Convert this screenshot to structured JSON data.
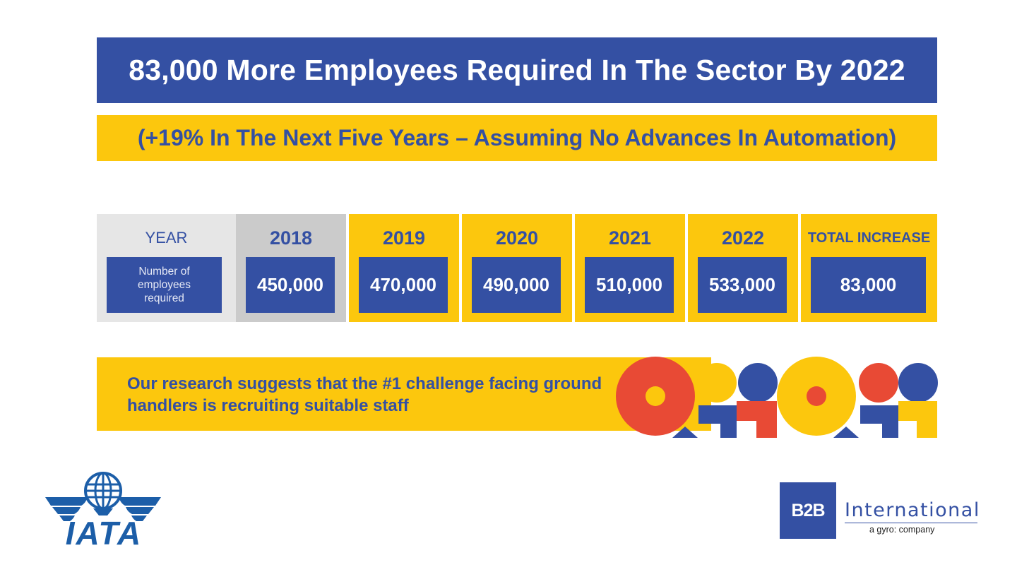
{
  "header": {
    "title": "83,000 More Employees Required In The Sector By 2022",
    "subtitle": "(+19% In The Next Five Years – Assuming No Advances In Automation)"
  },
  "table": {
    "row_header": "YEAR",
    "row_label": "Number of employees required",
    "columns": [
      {
        "year": "2018",
        "value": "450,000"
      },
      {
        "year": "2019",
        "value": "470,000"
      },
      {
        "year": "2020",
        "value": "490,000"
      },
      {
        "year": "2021",
        "value": "510,000"
      },
      {
        "year": "2022",
        "value": "533,000"
      }
    ],
    "total": {
      "label": "TOTAL INCREASE",
      "value": "83,000"
    }
  },
  "research": {
    "text": "Our research suggests that the #1 challenge facing ground handlers is recruiting suitable staff"
  },
  "logos": {
    "iata": "IATA",
    "b2b_mark": "B2B",
    "b2b_name": "International",
    "b2b_tagline": "a gyro: company"
  },
  "colors": {
    "blue": "#3450a3",
    "yellow": "#fcc70d",
    "red": "#e84a35",
    "light_grey": "#e6e6e6",
    "mid_grey": "#cbcbcb",
    "logo_blue": "#1c5ea8"
  }
}
